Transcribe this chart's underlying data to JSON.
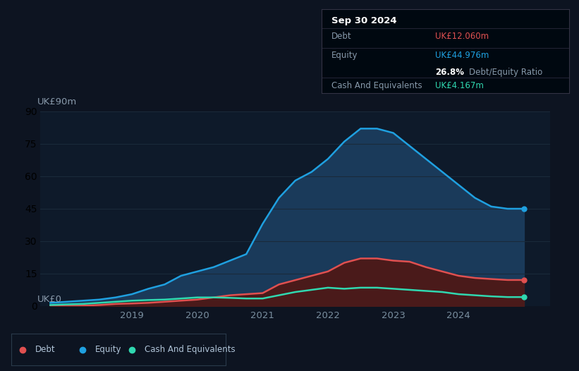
{
  "background_color": "#0d1421",
  "plot_bg_color": "#0e1a2a",
  "grid_color": "#1a2a3a",
  "ylabel_text": "UK£90m",
  "y0_text": "UK£0",
  "ylim": [
    0,
    90
  ],
  "xticks": [
    2019,
    2020,
    2021,
    2022,
    2023,
    2024
  ],
  "xlim_start": 2017.6,
  "xlim_end": 2025.4,
  "equity_color": "#1fa0e0",
  "equity_fill": "#1a3a5a",
  "debt_color": "#e05050",
  "debt_fill": "#4a1a1a",
  "cash_color": "#30d8b0",
  "cash_fill": "#1a3a32",
  "legend_bg": "#0d1421",
  "legend_border": "#2a3a4a",
  "infobox_bg": "#000810",
  "infobox_border": "#2a3a4a",
  "infobox_title": "Sep 30 2024",
  "infobox_date_color": "#ffffff",
  "infobox_debt_label": "Debt",
  "infobox_debt_value": "UK£12.060m",
  "infobox_debt_color": "#e05050",
  "infobox_equity_label": "Equity",
  "infobox_equity_value": "UK£44.976m",
  "infobox_equity_color": "#1fa0e0",
  "infobox_ratio": "26.8%",
  "infobox_ratio_label": " Debt/Equity Ratio",
  "infobox_ratio_color": "#ffffff",
  "infobox_cash_label": "Cash And Equivalents",
  "infobox_cash_value": "UK£4.167m",
  "infobox_cash_color": "#30d8b0",
  "time": [
    2017.75,
    2018.0,
    2018.25,
    2018.5,
    2018.75,
    2019.0,
    2019.25,
    2019.5,
    2019.75,
    2020.0,
    2020.25,
    2020.5,
    2020.75,
    2021.0,
    2021.25,
    2021.5,
    2021.75,
    2022.0,
    2022.25,
    2022.5,
    2022.75,
    2023.0,
    2023.25,
    2023.5,
    2023.75,
    2024.0,
    2024.25,
    2024.5,
    2024.75,
    2025.0
  ],
  "equity": [
    1.5,
    2.0,
    2.5,
    3.0,
    4.0,
    5.5,
    8.0,
    10.0,
    14.0,
    16.0,
    18.0,
    21.0,
    24.0,
    38.0,
    50.0,
    58.0,
    62.0,
    68.0,
    76.0,
    82.0,
    82.0,
    80.0,
    74.0,
    68.0,
    62.0,
    56.0,
    50.0,
    46.0,
    44.976,
    44.976
  ],
  "debt": [
    0.1,
    0.1,
    0.2,
    0.5,
    1.0,
    1.2,
    1.5,
    2.0,
    2.5,
    3.0,
    4.0,
    5.0,
    5.5,
    6.0,
    10.0,
    12.0,
    14.0,
    16.0,
    20.0,
    22.0,
    22.0,
    21.0,
    20.5,
    18.0,
    16.0,
    14.0,
    13.0,
    12.5,
    12.06,
    12.06
  ],
  "cash": [
    0.5,
    0.8,
    1.0,
    1.5,
    2.0,
    2.5,
    2.8,
    3.0,
    3.5,
    4.0,
    4.0,
    3.8,
    3.5,
    3.5,
    5.0,
    6.5,
    7.5,
    8.5,
    8.0,
    8.5,
    8.5,
    8.0,
    7.5,
    7.0,
    6.5,
    5.5,
    5.0,
    4.5,
    4.167,
    4.167
  ]
}
